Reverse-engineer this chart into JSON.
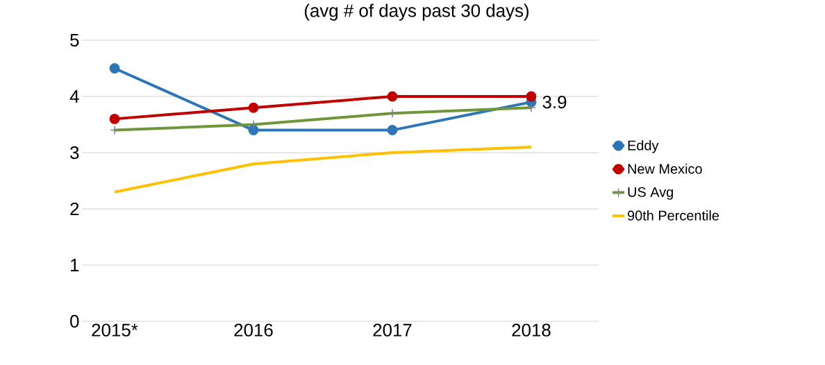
{
  "chart_data": {
    "type": "line",
    "title": "(avg # of days past 30 days)",
    "categories": [
      "2015*",
      "2016",
      "2017",
      "2018"
    ],
    "series": [
      {
        "name": "Eddy",
        "color": "#2e75b6",
        "values": [
          4.5,
          3.4,
          3.4,
          3.9
        ],
        "marker": "circle",
        "value_labels": [
          null,
          null,
          null,
          "3.9"
        ]
      },
      {
        "name": "New Mexico",
        "color": "#c00000",
        "values": [
          3.6,
          3.8,
          4.0,
          4.0
        ],
        "marker": "circle"
      },
      {
        "name": "US Avg",
        "color": "#70963c",
        "values": [
          3.4,
          3.5,
          3.7,
          3.8
        ],
        "marker": "cross"
      },
      {
        "name": "90th Percentile",
        "color": "#ffc000",
        "values": [
          2.3,
          2.8,
          3.0,
          3.1
        ],
        "marker": "none"
      }
    ],
    "ylim": [
      0,
      5
    ],
    "yticks": [
      0,
      1,
      2,
      3,
      4,
      5
    ],
    "grid": "y",
    "legend": "right"
  }
}
